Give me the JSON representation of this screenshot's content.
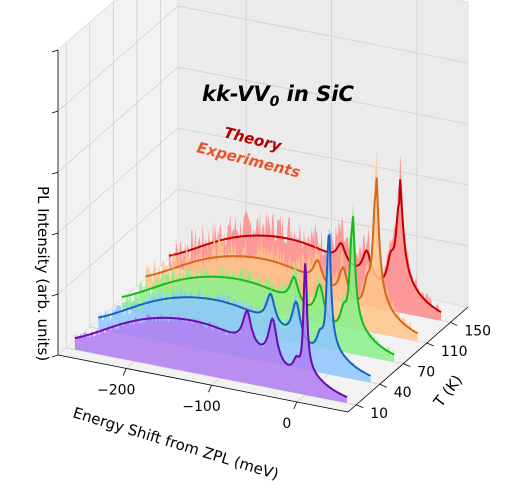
{
  "chart_data": {
    "type": "area",
    "title": "kk-VV",
    "title_subscript": "0",
    "title_suffix": " in SiC",
    "annotations": [
      {
        "text": "Theory",
        "color": "#b30000"
      },
      {
        "text": "Experiments",
        "color": "#e8552d"
      }
    ],
    "xlabel": "Energy Shift from ZPL (meV)",
    "ylabel": "T (K)",
    "zlabel": "PL Intensity (arb. units)",
    "x_ticks": [
      "−200",
      "−100",
      "0"
    ],
    "x_tick_values": [
      -200,
      -100,
      0
    ],
    "xlim": [
      -280,
      60
    ],
    "y_ticks": [
      "10",
      "40",
      "70",
      "110",
      "150"
    ],
    "temperatures": [
      10,
      40,
      70,
      110,
      150
    ],
    "series": [
      {
        "temperature": 10,
        "line_color": "#6a0dad",
        "fill_color": "#b07cf0"
      },
      {
        "temperature": 40,
        "line_color": "#1565c0",
        "fill_color": "#8ec5ff"
      },
      {
        "temperature": 70,
        "line_color": "#1bb81b",
        "fill_color": "#88f088"
      },
      {
        "temperature": 110,
        "line_color": "#d2691e",
        "fill_color": "#ffc58a"
      },
      {
        "temperature": 150,
        "line_color": "#c40000",
        "fill_color": "#ff8a8a"
      }
    ],
    "grid": true
  }
}
